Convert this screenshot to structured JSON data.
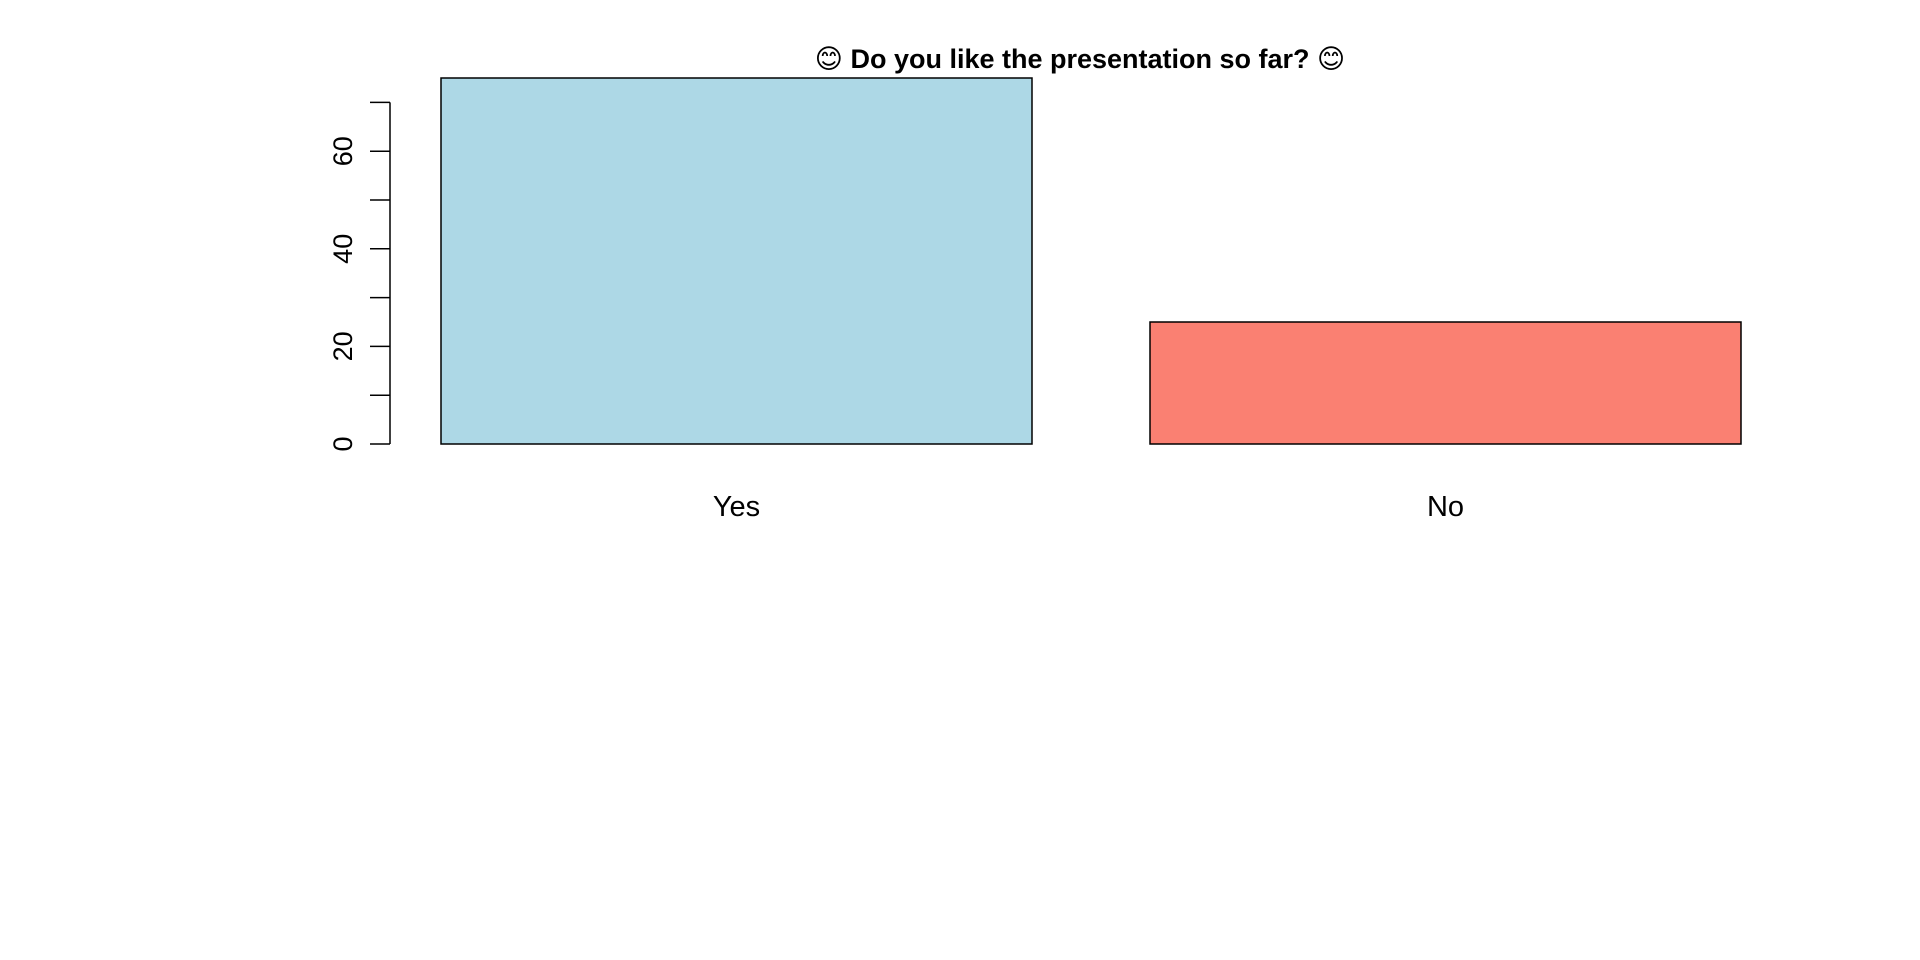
{
  "chart_data": {
    "type": "bar",
    "title": "😊 Do you like the presentation so far? 😊",
    "categories": [
      "Yes",
      "No"
    ],
    "values": [
      75,
      25
    ],
    "colors": [
      "#add8e6",
      "#fa8072"
    ],
    "ylim": [
      0,
      70
    ],
    "yticks": [
      0,
      20,
      40,
      60
    ],
    "yminor_ticks": [
      10,
      30,
      50,
      70
    ],
    "xlabel": "",
    "ylabel": "",
    "grid": false,
    "legend": "none"
  }
}
